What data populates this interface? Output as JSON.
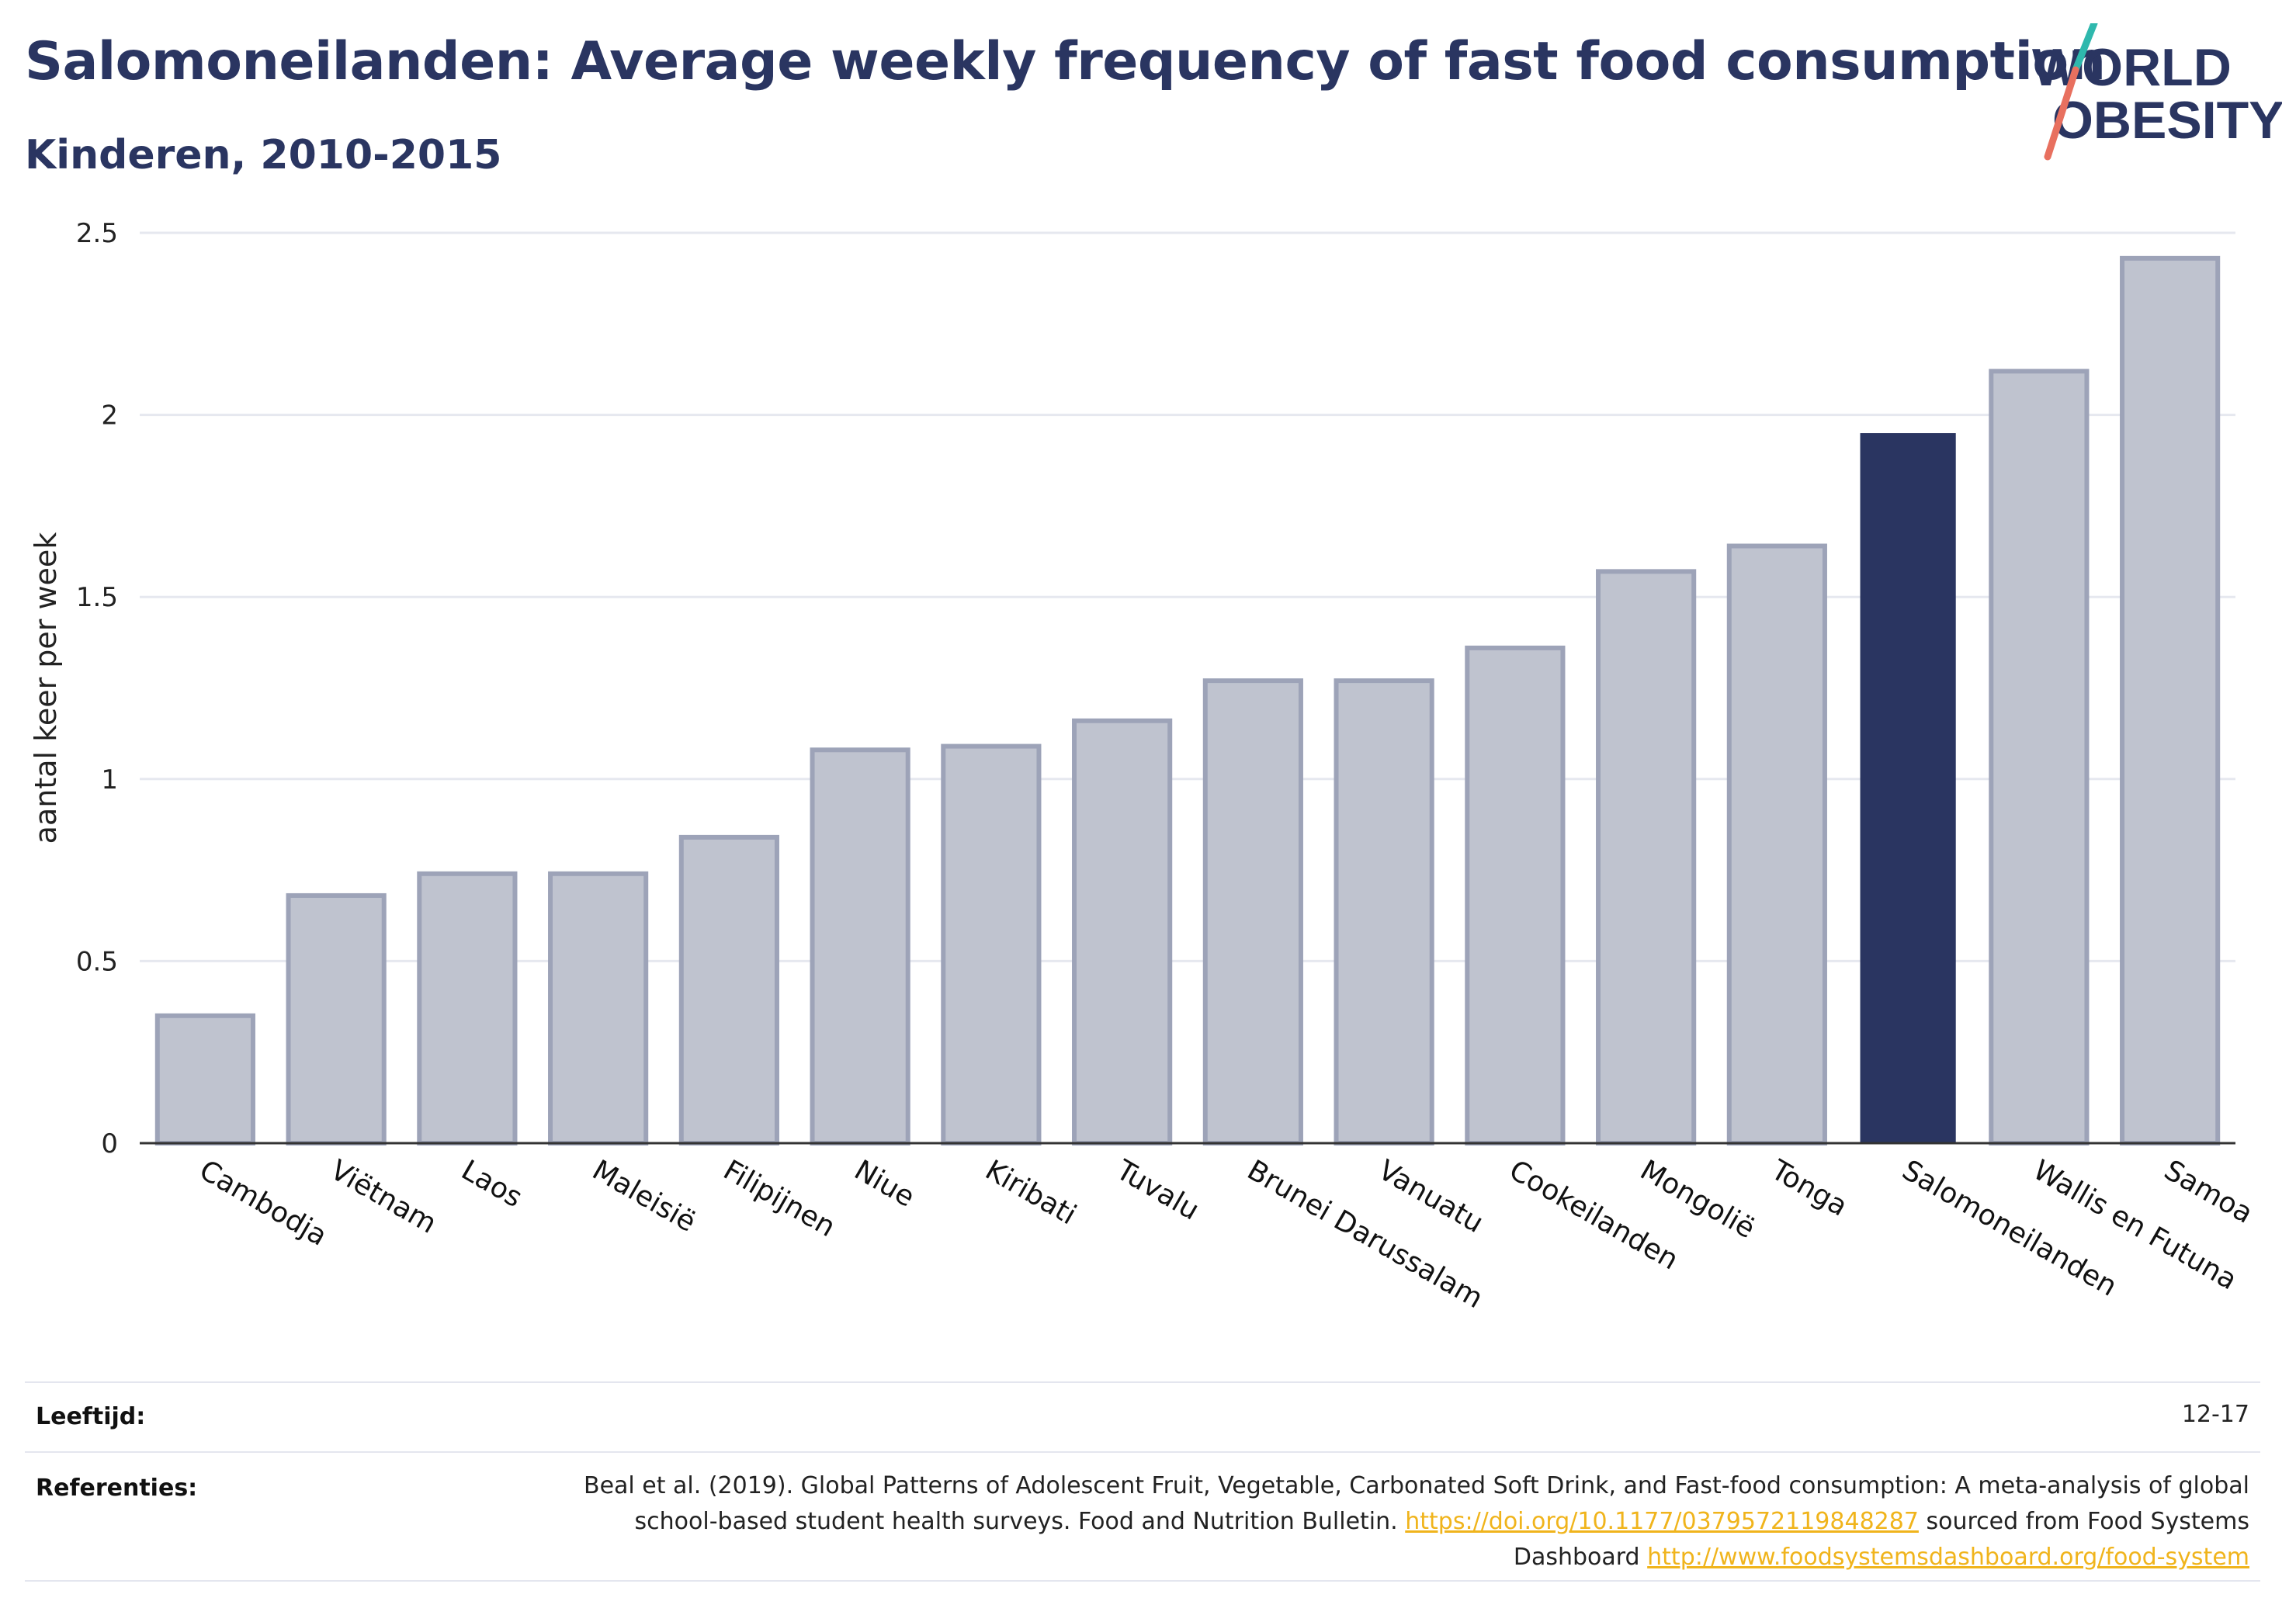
{
  "header": {
    "title": "Salomoneilanden: Average weekly frequency of fast food consumption",
    "subtitle": "Kinderen, 2010-2015"
  },
  "logo": {
    "line1": "WORLD",
    "line2": "OBESITY",
    "text_color": "#2a3561",
    "slash_colors": [
      "#2fb8ad",
      "#e8705f"
    ]
  },
  "chart_data": {
    "type": "bar",
    "ylabel": "aantal keer per week",
    "xlabel": "",
    "ylim": [
      0,
      2.5
    ],
    "yticks": [
      0,
      0.5,
      1,
      1.5,
      2,
      2.5
    ],
    "ytick_labels": [
      "0",
      "0.5",
      "1",
      "1.5",
      "2",
      "2.5"
    ],
    "grid": true,
    "categories": [
      "Cambodja",
      "Viëtnam",
      "Laos",
      "Maleisië",
      "Filipijnen",
      "Niue",
      "Kiribati",
      "Tuvalu",
      "Brunei Darussalam",
      "Vanuatu",
      "Cookeilanden",
      "Mongolië",
      "Tonga",
      "Salomoneilanden",
      "Wallis en Futuna",
      "Samoa"
    ],
    "values": [
      0.35,
      0.68,
      0.74,
      0.74,
      0.84,
      1.08,
      1.09,
      1.16,
      1.27,
      1.27,
      1.36,
      1.57,
      1.64,
      1.95,
      2.12,
      2.43
    ],
    "highlight": "Salomoneilanden",
    "colors": {
      "bar": "#bfc3cf",
      "bar_border": "#9da3b8",
      "highlight": "#2a3561",
      "grid": "#e6e8ef",
      "axis": "#333333"
    }
  },
  "footer": {
    "age_label": "Leeftijd:",
    "age_value": "12-17",
    "ref_label": "Referenties:",
    "ref_text_1": "Beal et al. (2019). Global Patterns of Adolescent Fruit, Vegetable, Carbonated Soft Drink, and Fast-food consumption: A meta-analysis of global school-based student health surveys. Food and Nutrition Bulletin.",
    "ref_link_1": "https://doi.org/10.1177/0379572119848287",
    "ref_text_2": "sourced from Food Systems Dashboard",
    "ref_link_2": "http://www.foodsystemsdashboard.org/food-system",
    "link_color": "#f0b41c"
  }
}
